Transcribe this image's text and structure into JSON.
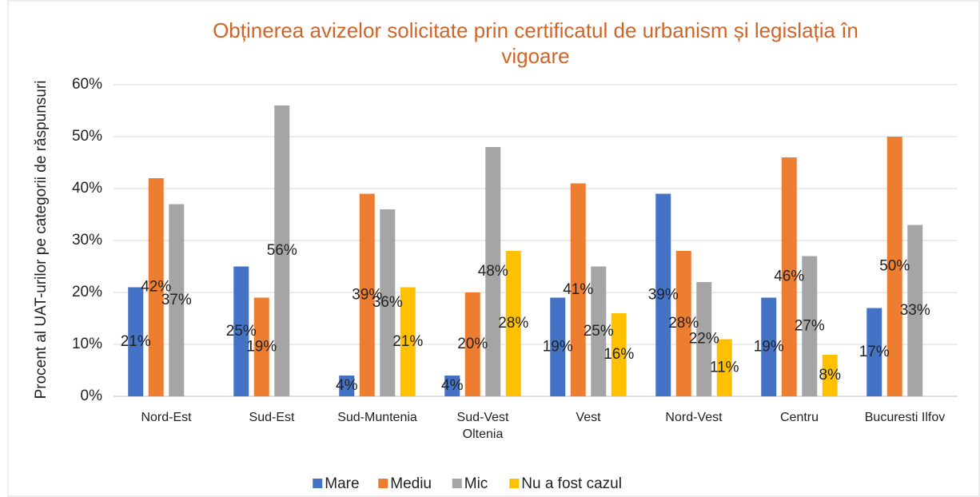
{
  "chart_data": {
    "type": "bar",
    "title": "Obținerea avizelor solicitate prin certificatul  de urbanism și legislația în vigoare",
    "y_label": "Procent al UAT-urilor pe categorii de răspunsuri",
    "categories": [
      "Nord-Est",
      "Sud-Est",
      "Sud-Muntenia",
      "Sud-Vest\nOltenia",
      "Vest",
      "Nord-Vest",
      "Centru",
      "Bucuresti Ilfov"
    ],
    "series": [
      {
        "name": "Mare",
        "color": "#4472c4",
        "values": [
          21,
          25,
          4,
          4,
          19,
          39,
          19,
          17
        ],
        "value_labels": [
          "21%",
          "25%",
          "4%",
          "4%",
          "19%",
          "39%",
          "19%",
          "17%"
        ]
      },
      {
        "name": "Mediu",
        "color": "#ed7d31",
        "values": [
          42,
          19,
          39,
          20,
          41,
          28,
          46,
          50
        ],
        "value_labels": [
          "42%",
          "19%",
          "39%",
          "20%",
          "41%",
          "28%",
          "46%",
          "50%"
        ]
      },
      {
        "name": "Mic",
        "color": "#a5a5a5",
        "values": [
          37,
          56,
          36,
          48,
          25,
          22,
          27,
          33
        ],
        "value_labels": [
          "37%",
          "56%",
          "36%",
          "48%",
          "25%",
          "22%",
          "27%",
          "33%"
        ]
      },
      {
        "name": "Nu a fost cazul",
        "color": "#ffc000",
        "values": [
          null,
          null,
          21,
          28,
          16,
          11,
          8,
          null
        ],
        "value_labels": [
          null,
          null,
          "21%",
          "28%",
          "16%",
          "11%",
          "8%",
          null
        ]
      }
    ],
    "ylim": [
      0,
      60
    ],
    "yticks": [
      {
        "value": 0,
        "label": "0%"
      },
      {
        "value": 10,
        "label": "10%"
      },
      {
        "value": 20,
        "label": "20%"
      },
      {
        "value": 30,
        "label": "30%"
      },
      {
        "value": 40,
        "label": "40%"
      },
      {
        "value": 50,
        "label": "50%"
      },
      {
        "value": 60,
        "label": "60%"
      }
    ],
    "grid": true,
    "legend": "bottom"
  }
}
